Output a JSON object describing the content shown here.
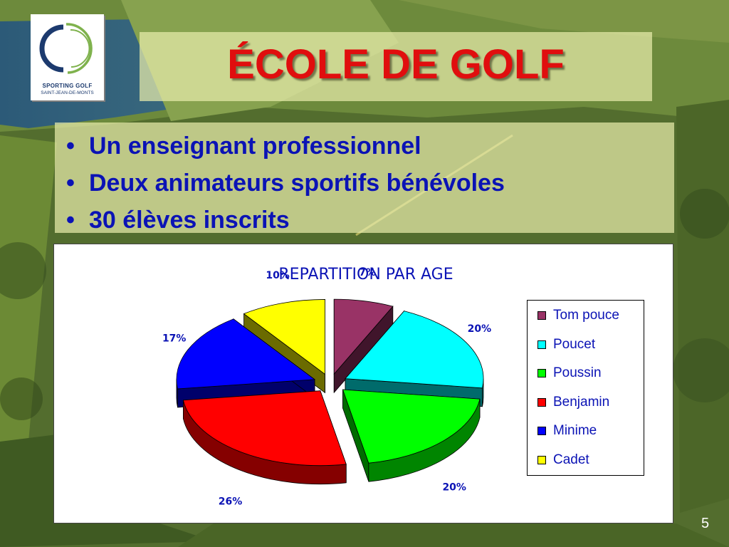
{
  "slide": {
    "title": "ÉCOLE DE GOLF",
    "bullets": [
      "Un enseignant professionnel",
      "Deux animateurs sportifs bénévoles",
      "30 élèves inscrits"
    ],
    "bullet_glyph": "•",
    "page_number": "5"
  },
  "logo": {
    "line1": "SPORTING GOLF",
    "line2": "SAINT-JEAN-DE-MONTS",
    "colors": [
      "#1c3a6e",
      "#7fb24d"
    ]
  },
  "colors": {
    "title": "#e00e0e",
    "bullets": "#0b13b5",
    "chart_text": "#0b13b5"
  },
  "chart_data": {
    "type": "pie",
    "style": "3d-exploded",
    "title": "REPARTITION PAR AGE",
    "categories": [
      "Tom pouce",
      "Poucet",
      "Poussin",
      "Benjamin",
      "Minime",
      "Cadet"
    ],
    "values": [
      7,
      20,
      20,
      26,
      17,
      10
    ],
    "labels": [
      "7%",
      "20%",
      "20%",
      "26%",
      "17%",
      "10%"
    ],
    "colors": [
      "#993366",
      "#00ffff",
      "#00ff00",
      "#ff0000",
      "#0000ff",
      "#ffff00"
    ],
    "legend": "right"
  }
}
